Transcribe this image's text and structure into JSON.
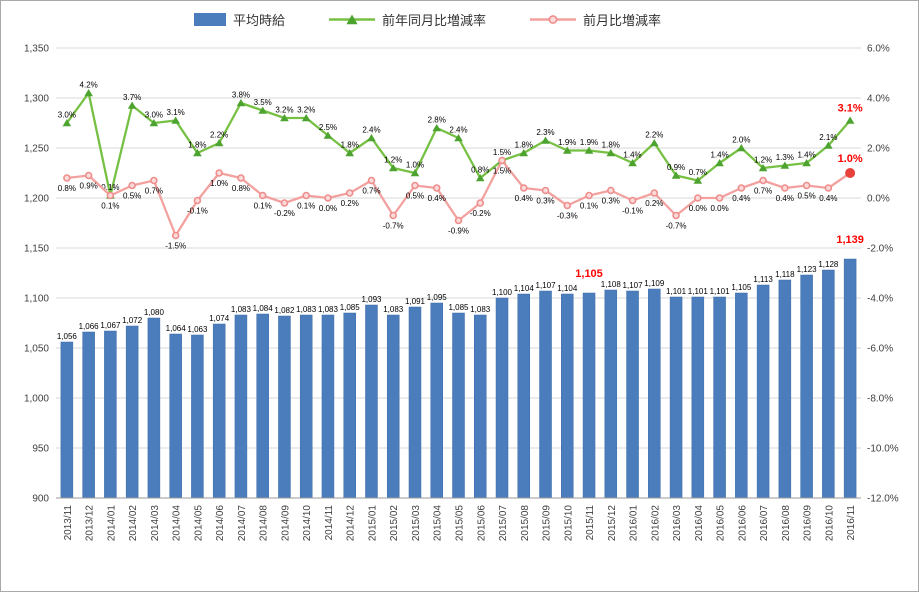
{
  "chart_data": {
    "type": "combo-bar-line",
    "title": "",
    "legend_position": "top",
    "grid": true,
    "categories": [
      "2013/11",
      "2013/12",
      "2014/01",
      "2014/02",
      "2014/03",
      "2014/04",
      "2014/05",
      "2014/06",
      "2014/07",
      "2014/08",
      "2014/09",
      "2014/10",
      "2014/11",
      "2014/12",
      "2015/01",
      "2015/02",
      "2015/03",
      "2015/04",
      "2015/05",
      "2015/06",
      "2015/07",
      "2015/08",
      "2015/09",
      "2015/10",
      "2015/11",
      "2015/12",
      "2016/01",
      "2016/02",
      "2016/03",
      "2016/04",
      "2016/05",
      "2016/06",
      "2016/07",
      "2016/08",
      "2016/09",
      "2016/10",
      "2016/11"
    ],
    "series": [
      {
        "name": "平均時給",
        "type": "bar",
        "axis": "left",
        "color": "#4b7cbc",
        "values": [
          1056,
          1066,
          1067,
          1072,
          1080,
          1064,
          1063,
          1074,
          1083,
          1084,
          1082,
          1083,
          1083,
          1085,
          1093,
          1083,
          1091,
          1095,
          1085,
          1083,
          1100,
          1104,
          1107,
          1104,
          1105,
          1108,
          1107,
          1109,
          1101,
          1101,
          1101,
          1105,
          1113,
          1118,
          1123,
          1128,
          1139
        ]
      },
      {
        "name": "前年同月比増減率",
        "type": "line",
        "axis": "right",
        "color": "#76c043",
        "marker": "triangle",
        "marker_color": "#4da32f",
        "values": [
          3.0,
          4.2,
          0.1,
          3.7,
          3.0,
          3.1,
          1.8,
          2.2,
          3.8,
          3.5,
          3.2,
          3.2,
          2.5,
          1.8,
          2.4,
          1.2,
          1.0,
          2.8,
          2.4,
          0.8,
          1.5,
          1.8,
          2.3,
          1.9,
          1.9,
          1.8,
          1.4,
          2.2,
          0.9,
          0.7,
          1.4,
          2.0,
          1.2,
          1.3,
          1.4,
          2.1,
          3.1
        ]
      },
      {
        "name": "前月比増減率",
        "type": "line",
        "axis": "right",
        "color": "#f2a19f",
        "marker": "circle",
        "marker_fill": "#fbdbda",
        "marker_stroke": "#ee8e8c",
        "last_marker_color": "#e8413c",
        "values": [
          0.8,
          0.9,
          0.1,
          0.5,
          0.7,
          -1.5,
          -0.1,
          1.0,
          0.8,
          0.1,
          -0.2,
          0.1,
          0.0,
          0.2,
          0.7,
          -0.7,
          0.5,
          0.4,
          -0.9,
          -0.2,
          1.5,
          0.4,
          0.3,
          -0.3,
          0.1,
          0.3,
          -0.1,
          0.2,
          -0.7,
          0.0,
          0.0,
          0.4,
          0.7,
          0.4,
          0.5,
          0.4,
          1.0
        ]
      }
    ],
    "left_axis": {
      "min": 900,
      "max": 1350,
      "ticks": [
        "1,350",
        "1,300",
        "1,250",
        "1,200",
        "1,150",
        "1,100",
        "1,050",
        "1,000",
        "950",
        "900"
      ]
    },
    "right_axis": {
      "min": -12,
      "max": 6,
      "ticks": [
        "6.0%",
        "4.0%",
        "2.0%",
        "0.0%",
        "-2.0%",
        "-4.0%",
        "-6.0%",
        "-8.0%",
        "-10.0%",
        "-12.0%"
      ]
    },
    "highlight": {
      "bar_value_indices": [
        24,
        36
      ],
      "highlight_last_line_point": true,
      "color": "#ff0000"
    }
  }
}
